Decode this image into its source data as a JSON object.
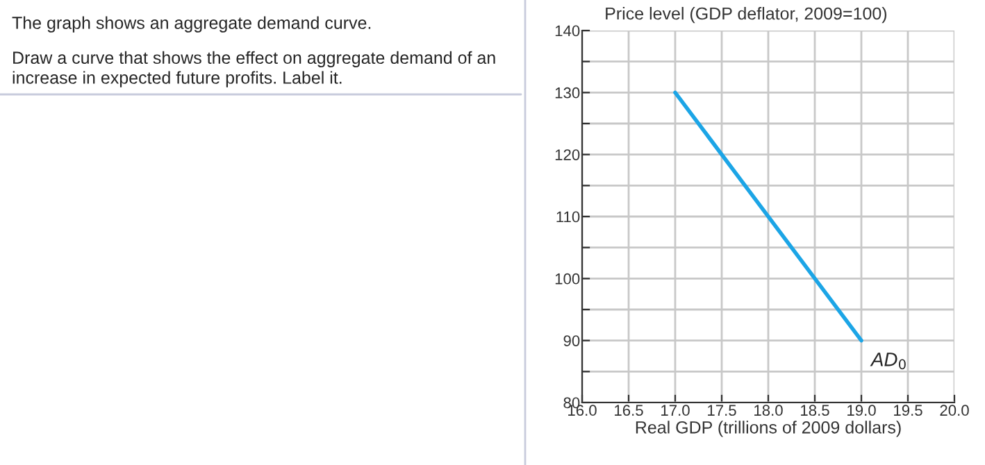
{
  "chart_data": {
    "type": "line",
    "title": "Price level (GDP deflator, 2009=100)",
    "xlabel": "Real GDP (trillions of 2009 dollars)",
    "annotations": [
      "The graph shows an aggregate demand curve.",
      "Draw a curve that shows the effect on aggregate demand of an increase in expected future profits. Label it."
    ],
    "series": [
      {
        "name": "AD$_{0}$",
        "color": "#1ca5e6",
        "x": [
          17.0,
          19.0
        ],
        "values": [
          130,
          90
        ]
      }
    ],
    "xlim": [
      16.0,
      20.0
    ],
    "xticks": [
      {
        "value": 16,
        "label": "16.0"
      },
      {
        "value": 16.5,
        "label": "16.5"
      },
      {
        "value": 17,
        "label": "17.0"
      },
      {
        "value": 17.5,
        "label": "17.5"
      },
      {
        "value": 18,
        "label": "18.0"
      },
      {
        "value": 18.5,
        "label": "18.5"
      },
      {
        "value": 19,
        "label": "19.0"
      },
      {
        "value": 19.5,
        "label": "19.5"
      },
      {
        "value": 20,
        "label": "20.0"
      }
    ],
    "ylim": [
      80,
      140
    ],
    "yticks": [
      80,
      {
        "value": 85,
        "label": null
      },
      90,
      {
        "value": 95,
        "label": null
      },
      100,
      {
        "value": 105,
        "label": null
      },
      110,
      {
        "value": 115,
        "label": null
      },
      120,
      {
        "value": 125,
        "label": null
      },
      130,
      {
        "value": 135,
        "label": null
      },
      140
    ],
    "grid": true,
    "marker": "none",
    "line_style": "solid"
  }
}
